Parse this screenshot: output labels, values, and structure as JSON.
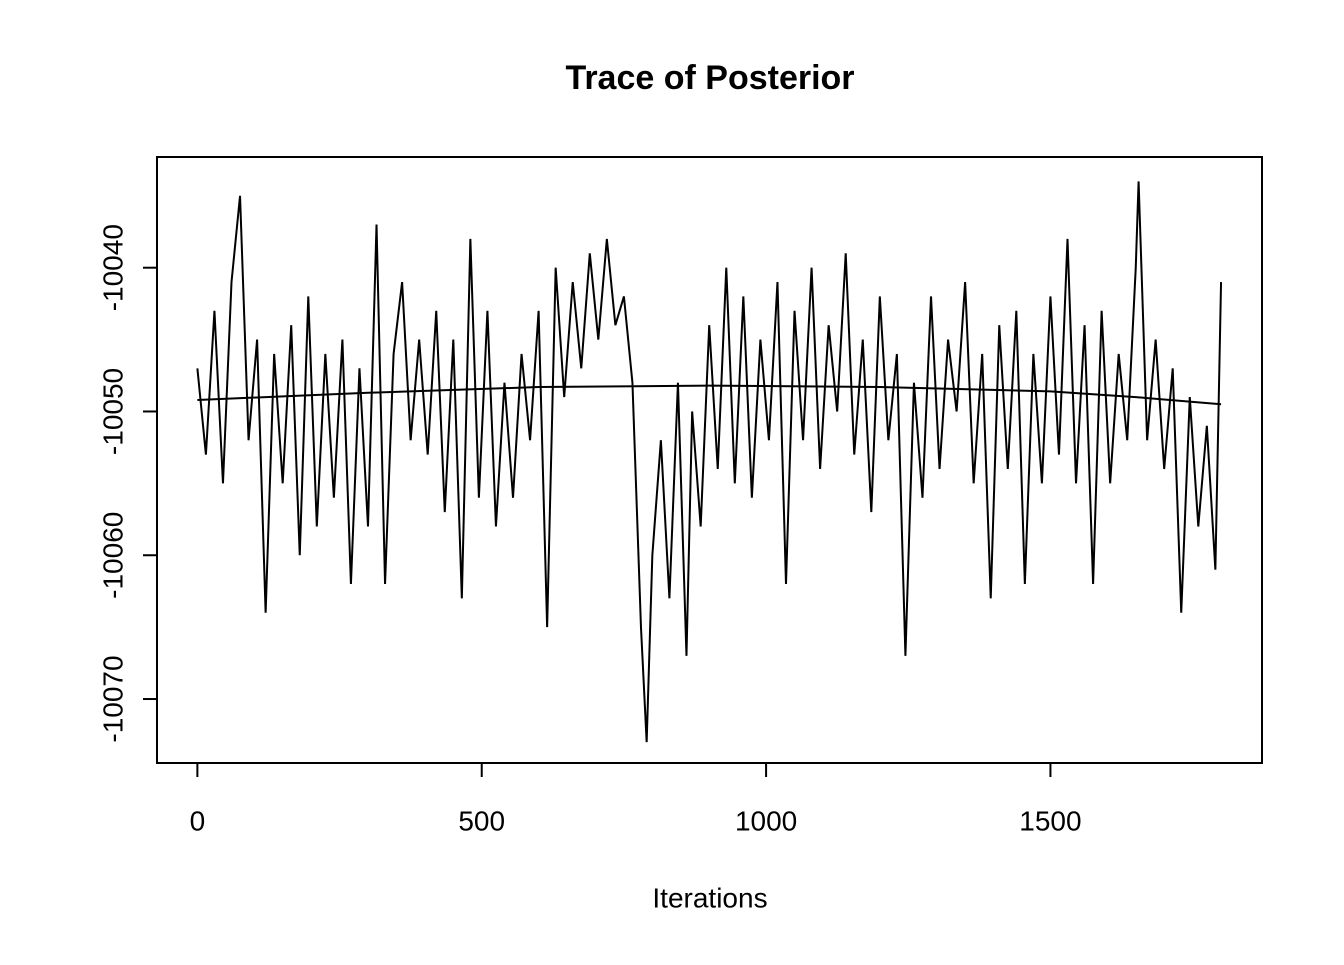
{
  "chart_data": {
    "type": "line",
    "title": "Trace of Posterior",
    "x_label": "Iterations",
    "series": [
      {
        "color": "#000000",
        "x": [
          0,
          15,
          30,
          45,
          60,
          75,
          90,
          105,
          120,
          135,
          150,
          165,
          180,
          195,
          210,
          225,
          240,
          255,
          270,
          285,
          300,
          315,
          330,
          345,
          360,
          375,
          390,
          405,
          420,
          435,
          450,
          465,
          480,
          495,
          510,
          525,
          540,
          555,
          570,
          585,
          600,
          615,
          630,
          645,
          660,
          675,
          690,
          705,
          720,
          735,
          750,
          765,
          780,
          790,
          800,
          815,
          830,
          845,
          860,
          870,
          885,
          900,
          915,
          930,
          945,
          960,
          975,
          990,
          1005,
          1020,
          1035,
          1050,
          1065,
          1080,
          1095,
          1110,
          1125,
          1140,
          1155,
          1170,
          1185,
          1200,
          1215,
          1230,
          1245,
          1260,
          1275,
          1290,
          1305,
          1320,
          1335,
          1350,
          1365,
          1380,
          1395,
          1410,
          1425,
          1440,
          1455,
          1470,
          1485,
          1500,
          1515,
          1530,
          1545,
          1560,
          1575,
          1590,
          1605,
          1620,
          1635,
          1650,
          1655,
          1670,
          1685,
          1700,
          1715,
          1730,
          1745,
          1760,
          1775,
          1790,
          1800
        ],
        "values": [
          -10047,
          -10053,
          -10043,
          -10055,
          -10041,
          -10035,
          -10052,
          -10045,
          -10064,
          -10046,
          -10055,
          -10044,
          -10060,
          -10042,
          -10058,
          -10046,
          -10056,
          -10045,
          -10062,
          -10047,
          -10058,
          -10037,
          -10062,
          -10046,
          -10041,
          -10052,
          -10045,
          -10053,
          -10043,
          -10057,
          -10045,
          -10063,
          -10038,
          -10056,
          -10043,
          -10058,
          -10048,
          -10056,
          -10046,
          -10052,
          -10043,
          -10065,
          -10040,
          -10049,
          -10041,
          -10047,
          -10039,
          -10045,
          -10038,
          -10044,
          -10042,
          -10048,
          -10065,
          -10073,
          -10060,
          -10052,
          -10063,
          -10048,
          -10067,
          -10050,
          -10058,
          -10044,
          -10054,
          -10040,
          -10055,
          -10042,
          -10056,
          -10045,
          -10052,
          -10041,
          -10062,
          -10043,
          -10052,
          -10040,
          -10054,
          -10044,
          -10050,
          -10039,
          -10053,
          -10045,
          -10057,
          -10042,
          -10052,
          -10046,
          -10067,
          -10048,
          -10056,
          -10042,
          -10054,
          -10045,
          -10050,
          -10041,
          -10055,
          -10046,
          -10063,
          -10044,
          -10054,
          -10043,
          -10062,
          -10046,
          -10055,
          -10042,
          -10053,
          -10038,
          -10055,
          -10044,
          -10062,
          -10043,
          -10055,
          -10046,
          -10052,
          -10040,
          -10034,
          -10052,
          -10045,
          -10054,
          -10047,
          -10064,
          -10049,
          -10058,
          -10051,
          -10061,
          -10041
        ]
      },
      {
        "color": "#000000",
        "x": [
          0,
          300,
          600,
          900,
          1200,
          1500,
          1650,
          1800
        ],
        "values": [
          -10049.2,
          -10048.7,
          -10048.3,
          -10048.2,
          -10048.3,
          -10048.6,
          -10049.0,
          -10049.5
        ]
      }
    ],
    "xlim": [
      -71,
      1872
    ],
    "xticks": [
      0,
      500,
      1000,
      1500
    ],
    "ylim": [
      -10074.45,
      -10032.3
    ],
    "yticks": [
      -10070,
      -10060,
      -10050,
      -10040
    ]
  }
}
